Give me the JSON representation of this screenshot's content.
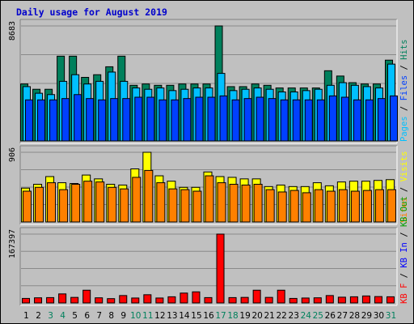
{
  "title": "Daily usage for August 2019",
  "colors": {
    "hits": "#00805c",
    "files": "#0040ff",
    "pages": "#00c0ff",
    "visits": "#ffff00",
    "sites": "#ff8000",
    "kbin": "#0000ff",
    "kbout": "#00a000",
    "kbf": "#ff0000",
    "panel_bg": "#c0c0c0",
    "title": "#0000cc",
    "weekend_label": "#00805c"
  },
  "chart_data": [
    {
      "type": "bar",
      "panel": "requests",
      "ymax_label": "8683",
      "ylim": [
        0,
        8683
      ],
      "right_labels": [
        "Pages",
        "Files",
        "Hits"
      ],
      "categories": [
        "1",
        "2",
        "3",
        "4",
        "5",
        "6",
        "7",
        "8",
        "9",
        "10",
        "11",
        "12",
        "13",
        "14",
        "15",
        "16",
        "17",
        "18",
        "19",
        "20",
        "21",
        "22",
        "23",
        "24",
        "25",
        "26",
        "27",
        "28",
        "29",
        "30",
        "31"
      ],
      "weekend_days": [
        "3",
        "4",
        "10",
        "11",
        "17",
        "18",
        "24",
        "25",
        "31"
      ],
      "series": [
        {
          "name": "Hits",
          "values": [
            4300,
            3900,
            3900,
            6400,
            6400,
            4800,
            5000,
            5600,
            6400,
            4200,
            4300,
            4200,
            4200,
            4300,
            4300,
            4300,
            8683,
            4100,
            4100,
            4300,
            4200,
            4000,
            4000,
            4000,
            4000,
            5300,
            4900,
            4400,
            4300,
            4300,
            6100
          ]
        },
        {
          "name": "Files",
          "values": [
            3100,
            3100,
            3100,
            3200,
            3500,
            3200,
            3100,
            3200,
            3200,
            3300,
            3300,
            3100,
            3100,
            3200,
            3300,
            3300,
            3400,
            3100,
            3200,
            3300,
            3200,
            3100,
            3100,
            3100,
            3100,
            3400,
            3300,
            3100,
            3100,
            3200,
            3400
          ]
        },
        {
          "name": "Pages",
          "values": [
            4100,
            3600,
            3500,
            4500,
            5000,
            4300,
            4500,
            5200,
            4500,
            4000,
            3900,
            4000,
            3800,
            3900,
            4000,
            4000,
            5100,
            3800,
            3900,
            4000,
            3900,
            3700,
            3700,
            3800,
            3900,
            4200,
            4400,
            4200,
            4100,
            4000,
            5800
          ]
        }
      ]
    },
    {
      "type": "bar",
      "panel": "visitors",
      "ymax_label": "906",
      "ylim": [
        0,
        906
      ],
      "right_labels": [
        "Sites",
        "Visits"
      ],
      "categories": [
        "1",
        "2",
        "3",
        "4",
        "5",
        "6",
        "7",
        "8",
        "9",
        "10",
        "11",
        "12",
        "13",
        "14",
        "15",
        "16",
        "17",
        "18",
        "19",
        "20",
        "21",
        "22",
        "23",
        "24",
        "25",
        "26",
        "27",
        "28",
        "29",
        "30",
        "31"
      ],
      "series": [
        {
          "name": "Visits",
          "values": [
            440,
            490,
            590,
            510,
            500,
            610,
            560,
            490,
            480,
            690,
            906,
            600,
            530,
            450,
            450,
            650,
            590,
            580,
            560,
            560,
            460,
            480,
            460,
            460,
            510,
            470,
            520,
            530,
            530,
            540,
            550
          ]
        },
        {
          "name": "Sites",
          "values": [
            400,
            450,
            510,
            420,
            490,
            530,
            520,
            450,
            430,
            580,
            670,
            510,
            430,
            420,
            400,
            600,
            510,
            490,
            480,
            490,
            420,
            390,
            410,
            380,
            420,
            400,
            420,
            400,
            410,
            420,
            420
          ]
        }
      ]
    },
    {
      "type": "bar",
      "panel": "traffic",
      "ymax_label": "167397",
      "ylim": [
        0,
        167397
      ],
      "right_labels": [
        "KB F",
        "KB In",
        "KB Out"
      ],
      "categories": [
        "1",
        "2",
        "3",
        "4",
        "5",
        "6",
        "7",
        "8",
        "9",
        "10",
        "11",
        "12",
        "13",
        "14",
        "15",
        "16",
        "17",
        "18",
        "19",
        "20",
        "21",
        "22",
        "23",
        "24",
        "25",
        "26",
        "27",
        "28",
        "29",
        "30",
        "31"
      ],
      "series": [
        {
          "name": "KB F",
          "values": [
            11000,
            12500,
            13000,
            22000,
            13500,
            31000,
            12500,
            10500,
            18000,
            12000,
            20000,
            12000,
            15000,
            24000,
            27000,
            13000,
            167397,
            13000,
            13500,
            31000,
            13500,
            31000,
            11000,
            12000,
            12500,
            18000,
            14000,
            15000,
            17000,
            15500,
            15000
          ]
        }
      ]
    }
  ]
}
